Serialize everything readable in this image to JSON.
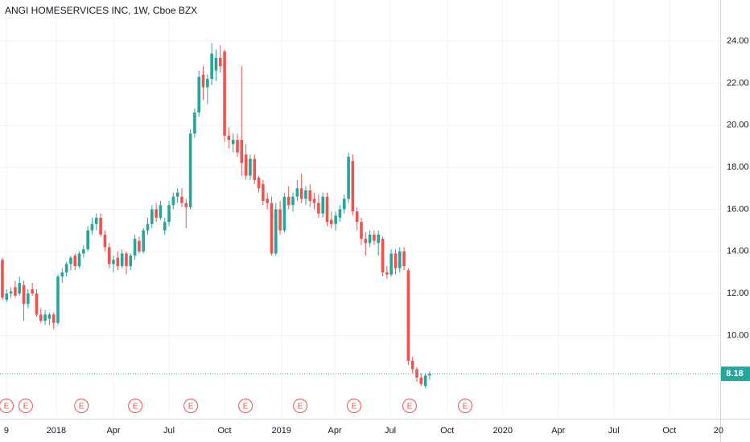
{
  "chart_data": {
    "type": "candlestick",
    "title": "ANGI HOMESERVICES INC, 1W, Cboe BZX",
    "up_color": "#26a69a",
    "down_color": "#ef5350",
    "grid": true,
    "xlim": [
      -0.56,
      168
    ],
    "xticks": [
      {
        "value": 0.94,
        "label": "9"
      },
      {
        "value": 12.6,
        "label": "2018"
      },
      {
        "value": 26.0,
        "label": "Apr"
      },
      {
        "value": 39.0,
        "label": "Jul"
      },
      {
        "value": 52.0,
        "label": "Oct"
      },
      {
        "value": 65.3,
        "label": "2019"
      },
      {
        "value": 77.8,
        "label": "Apr"
      },
      {
        "value": 90.8,
        "label": "Jul"
      },
      {
        "value": 104.1,
        "label": "Oct"
      },
      {
        "value": 117.1,
        "label": "2020"
      },
      {
        "value": 130.1,
        "label": "Apr"
      },
      {
        "value": 143.1,
        "label": "Jul"
      },
      {
        "value": 156.1,
        "label": "Oct"
      },
      {
        "value": 167.6,
        "label": "20"
      }
    ],
    "ylim": [
      6.2,
      25.95
    ],
    "yticks": [
      {
        "value": 10,
        "label": "10.00"
      },
      {
        "value": 12,
        "label": "12.00"
      },
      {
        "value": 14,
        "label": "14.00"
      },
      {
        "value": 16,
        "label": "16.00"
      },
      {
        "value": 18,
        "label": "18.00"
      },
      {
        "value": 20,
        "label": "20.00"
      },
      {
        "value": 22,
        "label": "22.00"
      },
      {
        "value": 24,
        "label": "24.00"
      }
    ],
    "last_price": 8.18,
    "events": [
      {
        "label": "E",
        "x": 0.94
      },
      {
        "label": "E",
        "x": 5.46
      },
      {
        "label": "E",
        "x": 18.5
      },
      {
        "label": "E",
        "x": 31.1
      },
      {
        "label": "E",
        "x": 44.1
      },
      {
        "label": "E",
        "x": 56.9
      },
      {
        "label": "E",
        "x": 69.7
      },
      {
        "label": "E",
        "x": 82.3
      },
      {
        "label": "E",
        "x": 95.3
      },
      {
        "label": "E",
        "x": 108.3
      }
    ],
    "candles": [
      [
        13.6,
        13.7,
        11.7,
        11.8
      ],
      [
        11.7,
        12.2,
        11.6,
        12.0
      ],
      [
        12.0,
        12.3,
        11.8,
        12.1
      ],
      [
        12.3,
        12.6,
        11.8,
        11.9
      ],
      [
        12.0,
        12.8,
        11.9,
        12.5
      ],
      [
        12.4,
        12.6,
        10.7,
        11.5
      ],
      [
        11.5,
        12.2,
        11.3,
        12.0
      ],
      [
        12.2,
        12.5,
        11.9,
        12.0
      ],
      [
        12.0,
        12.2,
        10.9,
        11.0
      ],
      [
        11.0,
        11.3,
        10.6,
        10.7
      ],
      [
        10.7,
        11.2,
        10.5,
        11.0
      ],
      [
        10.8,
        11.1,
        10.5,
        11.0
      ],
      [
        11.0,
        11.1,
        10.3,
        10.6
      ],
      [
        10.6,
        12.9,
        10.5,
        12.8
      ],
      [
        12.8,
        13.2,
        12.5,
        13.0
      ],
      [
        13.0,
        13.5,
        12.8,
        13.4
      ],
      [
        13.4,
        13.8,
        13.1,
        13.7
      ],
      [
        13.8,
        13.9,
        13.1,
        13.3
      ],
      [
        13.3,
        14.0,
        13.2,
        13.9
      ],
      [
        13.9,
        14.3,
        13.7,
        14.1
      ],
      [
        14.1,
        15.2,
        14.0,
        15.0
      ],
      [
        15.0,
        15.6,
        14.8,
        15.3
      ],
      [
        15.3,
        15.8,
        15.0,
        15.6
      ],
      [
        15.6,
        15.8,
        14.7,
        14.8
      ],
      [
        14.8,
        15.0,
        14.0,
        14.2
      ],
      [
        14.2,
        14.4,
        13.2,
        13.4
      ],
      [
        13.4,
        13.8,
        13.0,
        13.6
      ],
      [
        13.7,
        14.0,
        13.1,
        13.3
      ],
      [
        13.3,
        14.1,
        13.2,
        13.9
      ],
      [
        13.9,
        14.0,
        12.9,
        13.3
      ],
      [
        13.3,
        13.9,
        13.1,
        13.8
      ],
      [
        13.8,
        14.8,
        13.6,
        14.6
      ],
      [
        14.5,
        14.7,
        13.9,
        14.0
      ],
      [
        14.0,
        15.1,
        13.9,
        15.0
      ],
      [
        15.0,
        15.6,
        14.8,
        15.3
      ],
      [
        15.3,
        16.2,
        15.1,
        16.0
      ],
      [
        16.0,
        16.3,
        15.4,
        15.6
      ],
      [
        15.6,
        16.4,
        15.5,
        16.2
      ],
      [
        15.0,
        15.6,
        14.8,
        15.4
      ],
      [
        15.4,
        16.4,
        15.2,
        16.2
      ],
      [
        16.2,
        16.8,
        16.0,
        16.6
      ],
      [
        16.6,
        17.0,
        16.3,
        16.8
      ],
      [
        16.6,
        17.0,
        16.1,
        16.3
      ],
      [
        16.3,
        16.5,
        15.1,
        16.1
      ],
      [
        16.1,
        19.8,
        16.0,
        19.6
      ],
      [
        19.6,
        20.8,
        19.4,
        20.6
      ],
      [
        20.6,
        22.6,
        20.4,
        22.3
      ],
      [
        22.4,
        22.8,
        21.2,
        21.8
      ],
      [
        21.8,
        22.4,
        21.0,
        22.2
      ],
      [
        22.2,
        23.9,
        21.9,
        23.4
      ],
      [
        22.6,
        23.6,
        22.1,
        23.2
      ],
      [
        23.2,
        23.8,
        22.5,
        22.8
      ],
      [
        23.5,
        23.6,
        19.2,
        19.5
      ],
      [
        19.5,
        19.9,
        18.9,
        19.3
      ],
      [
        19.1,
        19.6,
        18.7,
        19.3
      ],
      [
        19.3,
        19.6,
        18.5,
        18.7
      ],
      [
        19.3,
        22.8,
        17.6,
        18.2
      ],
      [
        18.6,
        19.1,
        17.4,
        17.6
      ],
      [
        17.6,
        18.6,
        17.4,
        18.4
      ],
      [
        18.4,
        18.6,
        17.2,
        17.4
      ],
      [
        17.5,
        17.6,
        16.8,
        17.0
      ],
      [
        17.2,
        17.4,
        16.2,
        16.4
      ],
      [
        16.5,
        16.8,
        16.0,
        16.3
      ],
      [
        16.3,
        16.6,
        13.8,
        13.9
      ],
      [
        13.9,
        16.3,
        13.8,
        16.0
      ],
      [
        16.0,
        16.4,
        14.8,
        15.0
      ],
      [
        15.0,
        16.8,
        14.9,
        16.6
      ],
      [
        16.6,
        17.1,
        16.0,
        16.2
      ],
      [
        16.2,
        16.8,
        15.9,
        16.6
      ],
      [
        16.6,
        17.4,
        16.4,
        17.0
      ],
      [
        17.0,
        17.7,
        16.3,
        16.5
      ],
      [
        16.5,
        17.1,
        16.2,
        16.9
      ],
      [
        16.9,
        17.2,
        16.1,
        16.4
      ],
      [
        16.5,
        16.8,
        16.0,
        16.3
      ],
      [
        16.3,
        16.7,
        15.6,
        15.8
      ],
      [
        15.8,
        16.8,
        15.6,
        16.6
      ],
      [
        16.6,
        16.8,
        15.2,
        15.4
      ],
      [
        15.5,
        15.9,
        15.1,
        15.3
      ],
      [
        15.3,
        15.9,
        15.0,
        15.7
      ],
      [
        15.6,
        16.2,
        15.4,
        16.0
      ],
      [
        16.0,
        16.7,
        15.8,
        16.5
      ],
      [
        16.5,
        18.7,
        16.3,
        18.5
      ],
      [
        18.3,
        18.6,
        15.7,
        15.9
      ],
      [
        15.9,
        16.1,
        15.0,
        15.4
      ],
      [
        15.4,
        15.6,
        14.3,
        14.6
      ],
      [
        14.6,
        14.9,
        13.8,
        14.4
      ],
      [
        14.4,
        15.0,
        14.2,
        14.8
      ],
      [
        14.8,
        15.0,
        14.3,
        14.5
      ],
      [
        14.4,
        15.0,
        13.8,
        14.8
      ],
      [
        14.6,
        14.7,
        12.8,
        13.0
      ],
      [
        13.0,
        13.3,
        12.7,
        12.9
      ],
      [
        12.9,
        14.1,
        12.8,
        13.9
      ],
      [
        13.9,
        14.1,
        12.9,
        13.2
      ],
      [
        13.2,
        14.2,
        13.0,
        14.0
      ],
      [
        14.0,
        14.2,
        13.1,
        13.3
      ],
      [
        13.1,
        13.2,
        8.6,
        8.8
      ],
      [
        8.8,
        9.0,
        8.2,
        8.4
      ],
      [
        8.4,
        8.5,
        7.8,
        8.0
      ],
      [
        8.0,
        8.2,
        7.6,
        7.7
      ],
      [
        7.6,
        8.2,
        7.5,
        8.1
      ],
      [
        8.1,
        8.3,
        7.9,
        8.18
      ]
    ]
  }
}
